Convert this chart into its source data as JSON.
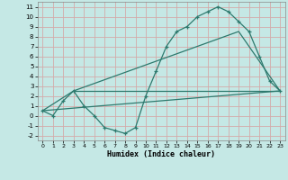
{
  "xlabel": "Humidex (Indice chaleur)",
  "background_color": "#c5e8e5",
  "grid_color": "#d4aaaa",
  "line_color": "#2d7a6e",
  "xlim": [
    -0.5,
    23.5
  ],
  "ylim": [
    -2.5,
    11.5
  ],
  "xticks": [
    0,
    1,
    2,
    3,
    4,
    5,
    6,
    7,
    8,
    9,
    10,
    11,
    12,
    13,
    14,
    15,
    16,
    17,
    18,
    19,
    20,
    21,
    22,
    23
  ],
  "yticks": [
    -2,
    -1,
    0,
    1,
    2,
    3,
    4,
    5,
    6,
    7,
    8,
    9,
    10,
    11
  ],
  "line1_x": [
    0,
    1,
    2,
    3,
    4,
    5,
    6,
    7,
    8,
    9,
    10,
    11,
    12,
    13,
    14,
    15,
    16,
    17,
    18,
    19,
    20,
    21,
    22,
    23
  ],
  "line1_y": [
    0.5,
    0,
    1.5,
    2.5,
    1,
    0,
    -1.2,
    -1.5,
    -1.8,
    -1.2,
    2.0,
    4.5,
    7.0,
    8.5,
    9.0,
    10.0,
    10.5,
    11.0,
    10.5,
    9.5,
    8.5,
    6.0,
    3.5,
    2.5
  ],
  "line2_x": [
    0,
    3,
    19,
    23
  ],
  "line2_y": [
    0.5,
    2.5,
    8.5,
    2.5
  ],
  "line3_x": [
    0,
    23
  ],
  "line3_y": [
    0.5,
    2.5
  ],
  "line4_x": [
    3,
    23
  ],
  "line4_y": [
    2.5,
    2.5
  ]
}
